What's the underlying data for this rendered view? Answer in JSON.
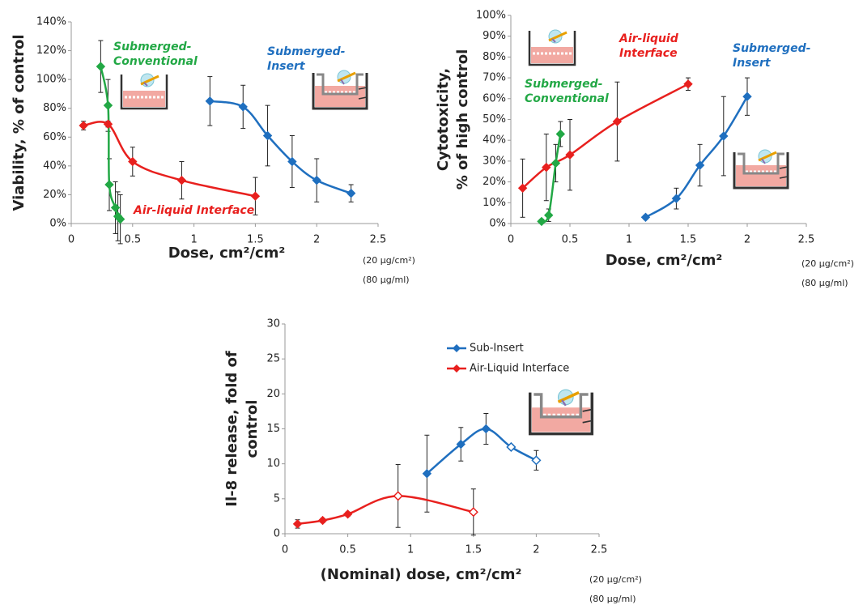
{
  "chart_data": [
    {
      "type": "line",
      "ylabel": [
        "Viability, % of control"
      ],
      "xlabel": "Dose, cm²/cm²",
      "notes": [
        "(20 µg/cm²)",
        "(80 µg/ml)"
      ],
      "xlim": [
        0,
        2.5
      ],
      "xticks": [
        0,
        0.5,
        1,
        1.5,
        2,
        2.5
      ],
      "ylim": [
        0,
        140
      ],
      "yticks": [
        {
          "value": 0,
          "label": "0%"
        },
        {
          "value": 20,
          "label": "20%"
        },
        {
          "value": 40,
          "label": "40%"
        },
        {
          "value": 60,
          "label": "60%"
        },
        {
          "value": 80,
          "label": "80%"
        },
        {
          "value": 100,
          "label": "100%"
        },
        {
          "value": 120,
          "label": "120%"
        },
        {
          "value": 140,
          "label": "140%"
        }
      ],
      "series": [
        {
          "color": "#22a845",
          "x": [
            0.24,
            0.3,
            0.31,
            0.36,
            0.38,
            0.4
          ],
          "values": [
            109,
            82,
            27,
            11,
            5,
            3
          ],
          "errors": [
            18,
            18,
            18,
            18,
            17,
            17
          ]
        },
        {
          "color": "#e8201e",
          "x": [
            0.1,
            0.3,
            0.5,
            0.9,
            1.5
          ],
          "values": [
            68,
            69,
            43,
            30,
            19
          ],
          "errors": [
            3,
            2,
            10,
            13,
            13
          ]
        },
        {
          "color": "#1f6fbf",
          "x": [
            1.13,
            1.4,
            1.6,
            1.8,
            2.0,
            2.28
          ],
          "values": [
            85,
            81,
            61,
            43,
            30,
            21
          ],
          "errors": [
            17,
            15,
            21,
            18,
            15,
            6
          ]
        }
      ],
      "annotations": [
        {
          "text": [
            "Submerged-",
            "Conventional"
          ],
          "color": "#22a845"
        },
        {
          "text": [
            "Submerged-",
            "Insert"
          ],
          "color": "#1f6fbf"
        },
        {
          "text": [
            "Air-liquid Interface"
          ],
          "color": "#e8201e"
        }
      ]
    },
    {
      "type": "line",
      "ylabel": [
        "Cytotoxicity,",
        "% of high control"
      ],
      "xlabel": "Dose, cm²/cm²",
      "notes": [
        "(20 µg/cm²)",
        "(80 µg/ml)"
      ],
      "xlim": [
        0,
        2.5
      ],
      "xticks": [
        0,
        0.5,
        1,
        1.5,
        2,
        2.5
      ],
      "ylim": [
        0,
        100
      ],
      "yticks": [
        {
          "value": 0,
          "label": "0%"
        },
        {
          "value": 10,
          "label": "10%"
        },
        {
          "value": 20,
          "label": "20%"
        },
        {
          "value": 30,
          "label": "30%"
        },
        {
          "value": 40,
          "label": "40%"
        },
        {
          "value": 50,
          "label": "50%"
        },
        {
          "value": 60,
          "label": "60%"
        },
        {
          "value": 70,
          "label": "70%"
        },
        {
          "value": 80,
          "label": "80%"
        },
        {
          "value": 90,
          "label": "90%"
        },
        {
          "value": 100,
          "label": "100%"
        }
      ],
      "series": [
        {
          "color": "#e8201e",
          "x": [
            0.1,
            0.3,
            0.5,
            0.9,
            1.5
          ],
          "values": [
            17,
            27,
            33,
            49,
            67
          ],
          "errors": [
            14,
            16,
            17,
            19,
            3
          ]
        },
        {
          "color": "#22a845",
          "x": [
            0.26,
            0.32,
            0.38,
            0.42
          ],
          "values": [
            1,
            4,
            29,
            43
          ],
          "errors": [
            1,
            3,
            9,
            6
          ]
        },
        {
          "color": "#1f6fbf",
          "x": [
            1.14,
            1.4,
            1.6,
            1.8,
            2.0
          ],
          "values": [
            3,
            12,
            28,
            42,
            61
          ],
          "errors": [
            1,
            5,
            10,
            19,
            9
          ]
        }
      ],
      "annotations": [
        {
          "text": [
            "Air-liquid",
            "Interface"
          ],
          "color": "#e8201e"
        },
        {
          "text": [
            "Submerged-",
            "Insert"
          ],
          "color": "#1f6fbf"
        },
        {
          "text": [
            "Submerged-",
            "Conventional"
          ],
          "color": "#22a845"
        }
      ]
    },
    {
      "type": "line",
      "ylabel": [
        "Il-8 release, fold of",
        "control"
      ],
      "xlabel": "(Nominal) dose, cm²/cm²",
      "notes": [
        "(20 µg/cm²)",
        "(80 µg/ml)"
      ],
      "xlim": [
        0,
        2.5
      ],
      "xticks": [
        0,
        0.5,
        1,
        1.5,
        2,
        2.5
      ],
      "ylim": [
        0,
        30
      ],
      "yticks": [
        0,
        5,
        10,
        15,
        20,
        25,
        30
      ],
      "legend": "upper right",
      "series": [
        {
          "name": "Sub-Insert",
          "color": "#1f6fbf",
          "x": [
            1.13,
            1.4,
            1.6,
            1.8,
            2.0
          ],
          "values": [
            8.6,
            12.8,
            15,
            12.4,
            10.5
          ],
          "errors": [
            5.5,
            2.4,
            2.2,
            0.3,
            1.4
          ],
          "open": [
            false,
            false,
            false,
            true,
            true
          ]
        },
        {
          "name": "Air-Liquid Interface",
          "color": "#e8201e",
          "x": [
            0.1,
            0.3,
            0.5,
            0.9,
            1.5
          ],
          "values": [
            1.4,
            1.9,
            2.8,
            5.4,
            3.1
          ],
          "errors": [
            0.6,
            0.3,
            0.3,
            4.5,
            3.3
          ],
          "open": [
            false,
            false,
            false,
            true,
            true
          ]
        }
      ]
    }
  ]
}
